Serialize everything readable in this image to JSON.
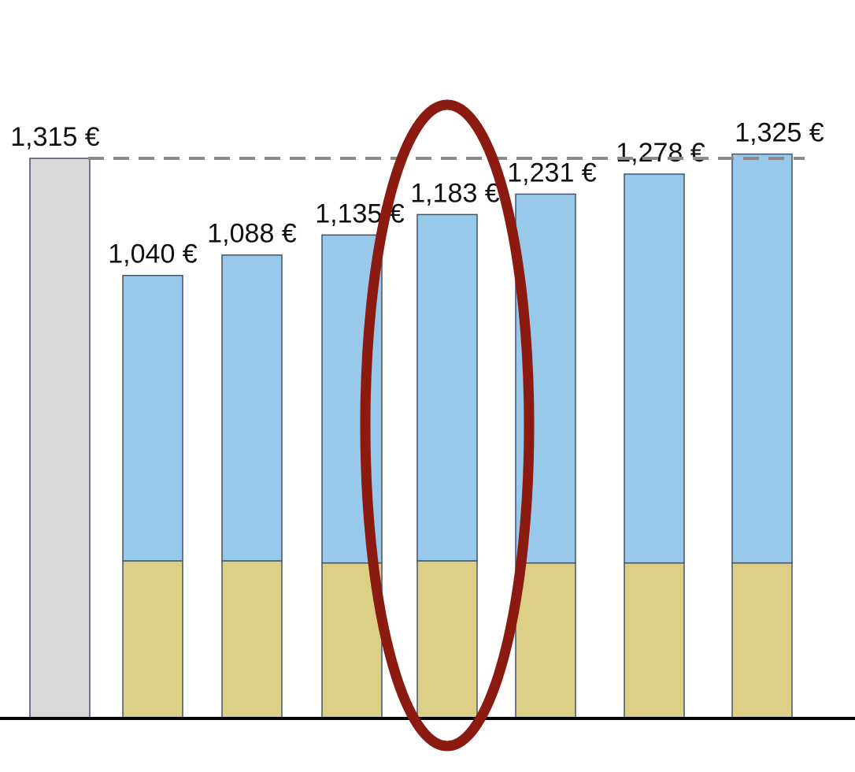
{
  "chart_data": {
    "type": "bar",
    "stacked": true,
    "categories": [
      "",
      "",
      "",
      "",
      "",
      "",
      "",
      ""
    ],
    "value_labels": [
      "1,315 €",
      "1,040 €",
      "1,088 €",
      "1,135 €",
      "1,183 €",
      "1,231 €",
      "1,278 €",
      "1,325 €"
    ],
    "series": [
      {
        "values": [
          0,
          370,
          370,
          365,
          370,
          365,
          365,
          365
        ]
      },
      {
        "values": [
          0,
          670,
          718,
          770,
          813,
          866,
          913,
          960
        ]
      },
      {
        "values": [
          1315,
          0,
          0,
          0,
          0,
          0,
          0,
          0
        ]
      }
    ],
    "totals": [
      1315,
      1040,
      1088,
      1135,
      1183,
      1231,
      1278,
      1325
    ],
    "reference_line": {
      "value": 1315,
      "style": "dashed"
    },
    "highlight": {
      "category_index": 4,
      "shape": "ellipse"
    },
    "ylim": [
      0,
      1400
    ],
    "grid": false,
    "legend": "none",
    "colors": {
      "base": "#dccf86",
      "increment": "#99c9ea",
      "reference": "#d9d9d9",
      "bar_outline": "#44546a",
      "reference_line": "#8a8a8a",
      "highlight": "#8b1a10",
      "axis": "#000000"
    }
  }
}
